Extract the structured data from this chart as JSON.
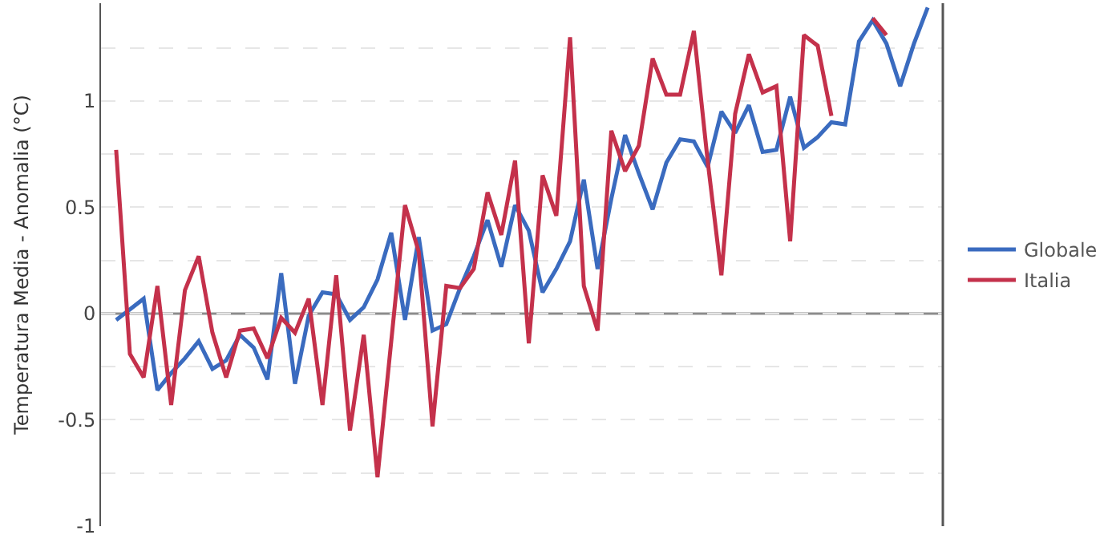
{
  "chart_data": {
    "type": "line",
    "ylabel": "Temperatura Media - Anomalia (°C)",
    "categories": [
      null,
      null,
      null,
      null,
      null,
      null,
      null,
      null,
      null,
      null,
      null,
      null,
      null,
      null,
      null,
      null,
      null,
      null,
      null,
      null,
      null,
      null,
      null,
      null,
      null,
      null,
      null,
      null,
      null,
      null,
      null,
      null,
      null,
      null,
      null,
      null,
      null,
      null,
      null,
      null,
      null,
      null,
      null,
      null,
      null,
      null,
      null,
      null,
      null,
      null,
      null,
      null,
      null,
      null,
      null,
      null,
      null,
      null,
      null,
      null
    ],
    "series": [
      {
        "name": "Globale",
        "color": "#3a6bbf",
        "values": [
          -0.03,
          0.02,
          0.07,
          -0.36,
          -0.28,
          -0.21,
          -0.13,
          -0.26,
          -0.22,
          -0.1,
          -0.16,
          -0.31,
          0.19,
          -0.33,
          -0.01,
          0.1,
          0.09,
          -0.03,
          0.03,
          0.16,
          0.38,
          -0.03,
          0.36,
          -0.08,
          -0.05,
          0.12,
          0.27,
          0.44,
          0.22,
          0.51,
          0.39,
          0.1,
          0.21,
          0.34,
          0.63,
          0.21,
          0.54,
          0.84,
          0.66,
          0.49,
          0.71,
          0.82,
          0.81,
          0.69,
          0.95,
          0.85,
          0.98,
          0.76,
          0.77,
          1.02,
          0.78,
          0.83,
          0.9,
          0.89,
          1.28,
          1.38,
          1.27,
          1.07,
          1.27,
          1.44
        ]
      },
      {
        "name": "Italia",
        "color": "#c4314b",
        "values": [
          0.77,
          -0.19,
          -0.3,
          0.13,
          -0.43,
          0.11,
          0.27,
          -0.09,
          -0.3,
          -0.08,
          -0.07,
          -0.21,
          -0.02,
          -0.09,
          0.07,
          -0.43,
          0.18,
          -0.55,
          -0.1,
          -0.77,
          -0.13,
          0.51,
          0.29,
          -0.53,
          0.13,
          0.12,
          0.21,
          0.57,
          0.37,
          0.72,
          -0.14,
          0.65,
          0.46,
          1.3,
          0.13,
          -0.08,
          0.86,
          0.67,
          0.79,
          1.2,
          1.03,
          1.03,
          1.33,
          0.72,
          0.18,
          0.94,
          1.22,
          1.04,
          1.07,
          0.34,
          1.31,
          1.26,
          0.93,
          null,
          null,
          1.39,
          1.31,
          null,
          null,
          null
        ]
      }
    ],
    "ylim": [
      -1,
      1.46
    ],
    "yticks": [
      -1,
      {
        "value": -0.75,
        "label": null
      },
      -0.5,
      {
        "value": -0.25,
        "label": null
      },
      0,
      {
        "value": 0.25,
        "label": null
      },
      0.5,
      {
        "value": 0.75,
        "label": null
      },
      1,
      {
        "value": 1.25,
        "label": null
      }
    ],
    "ref_lines": [
      {
        "axis": "y",
        "value": 0,
        "label": null,
        "color": "#8c8c8c"
      }
    ],
    "grid": "y",
    "legend": "right",
    "marker": "none",
    "line_style": "solid"
  }
}
